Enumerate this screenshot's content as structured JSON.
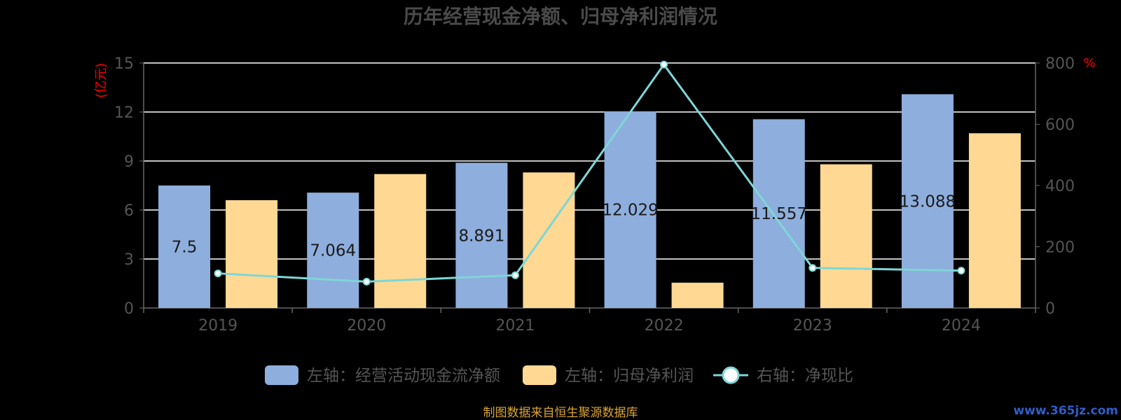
{
  "colors": {
    "bar_cashflow": "#8eaedd",
    "bar_profit": "#ffd993",
    "line_ratio": "#7ed6d6",
    "grid": "#ffffff",
    "unit_text": "#ff0000",
    "footer_text": "#d9a531",
    "watermark_text": "#2f5dc9"
  },
  "chart_data": {
    "type": "bar",
    "title": "历年经营现金净额、归母净利润情况",
    "categories": [
      "2019",
      "2020",
      "2021",
      "2022",
      "2023",
      "2024"
    ],
    "left_axis": {
      "unit": "(亿元)",
      "ylim": [
        0,
        15
      ],
      "ticks": [
        "0",
        "3",
        "6",
        "9",
        "12",
        "15"
      ]
    },
    "right_axis": {
      "unit": "%",
      "ylim": [
        0,
        800
      ],
      "ticks": [
        "0",
        "200",
        "400",
        "600",
        "800"
      ]
    },
    "series": [
      {
        "name": "左轴：经营活动现金流净额",
        "type": "bar",
        "axis": "left",
        "values": [
          7.5,
          7.064,
          8.891,
          12.029,
          11.557,
          13.088
        ],
        "labels": [
          "7.5",
          "7.064",
          "8.891",
          "12.029",
          "11.557",
          "13.088"
        ]
      },
      {
        "name": "左轴：归母净利润",
        "type": "bar",
        "axis": "left",
        "values": [
          6.6,
          8.2,
          8.3,
          1.55,
          8.8,
          10.7
        ]
      },
      {
        "name": "右轴：净现比",
        "type": "line",
        "axis": "right",
        "values": [
          113,
          86,
          107,
          795,
          131,
          122
        ]
      }
    ],
    "grid": true,
    "legend_position": "bottom"
  },
  "footer": {
    "source": "制图数据来自恒生聚源数据库",
    "watermark": "www.365jz.com"
  }
}
